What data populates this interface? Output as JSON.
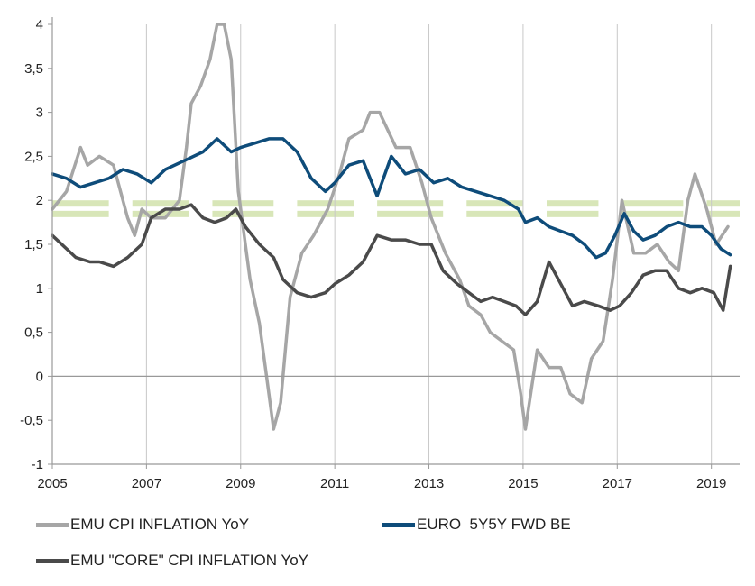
{
  "chart_data": {
    "type": "line",
    "title": "",
    "xlabel": "",
    "ylabel": "",
    "xlim": [
      2005,
      2019.6
    ],
    "ylim": [
      -1,
      4
    ],
    "y_ticks": [
      -1,
      -0.5,
      0,
      0.5,
      1,
      1.5,
      2,
      2.5,
      3,
      3.5,
      4
    ],
    "y_tick_labels": [
      "-1",
      "-0,5",
      "0",
      "0,5",
      "1",
      "1,5",
      "2",
      "2,5",
      "3",
      "3,5",
      "4"
    ],
    "x_ticks": [
      2005,
      2007,
      2009,
      2011,
      2013,
      2015,
      2017,
      2019
    ],
    "x_tick_labels": [
      "2005",
      "2007",
      "2009",
      "2011",
      "2013",
      "2015",
      "2017",
      "2019"
    ],
    "target_band": {
      "low": 1.85,
      "high": 2.0,
      "color": "#d8e6b8",
      "segment_years": [
        [
          2005.0,
          2006.2
        ],
        [
          2006.7,
          2007.9
        ],
        [
          2008.4,
          2009.7
        ],
        [
          2010.2,
          2011.4
        ],
        [
          2011.9,
          2013.3
        ],
        [
          2013.8,
          2015.0
        ],
        [
          2015.5,
          2016.6
        ],
        [
          2017.1,
          2018.4
        ],
        [
          2018.9,
          2019.6
        ]
      ]
    },
    "series": [
      {
        "name": "EMU CPI INFLATION YoY",
        "color": "#a6a6a6",
        "x": [
          2005.0,
          2005.3,
          2005.6,
          2005.75,
          2006.0,
          2006.3,
          2006.6,
          2006.75,
          2006.9,
          2007.1,
          2007.4,
          2007.7,
          2007.85,
          2007.95,
          2008.15,
          2008.35,
          2008.5,
          2008.65,
          2008.8,
          2008.95,
          2009.2,
          2009.4,
          2009.55,
          2009.7,
          2009.85,
          2010.05,
          2010.3,
          2010.55,
          2010.85,
          2011.1,
          2011.3,
          2011.6,
          2011.75,
          2011.95,
          2012.3,
          2012.6,
          2012.85,
          2013.05,
          2013.35,
          2013.65,
          2013.85,
          2014.1,
          2014.3,
          2014.55,
          2014.8,
          2014.95,
          2015.05,
          2015.3,
          2015.55,
          2015.8,
          2016.0,
          2016.25,
          2016.45,
          2016.7,
          2016.9,
          2017.1,
          2017.35,
          2017.6,
          2017.85,
          2018.1,
          2018.3,
          2018.5,
          2018.65,
          2018.9,
          2019.1,
          2019.35
        ],
        "values": [
          1.9,
          2.1,
          2.6,
          2.4,
          2.5,
          2.4,
          1.8,
          1.6,
          1.9,
          1.8,
          1.8,
          2.0,
          2.6,
          3.1,
          3.3,
          3.6,
          4.0,
          4.0,
          3.6,
          2.1,
          1.1,
          0.6,
          0.0,
          -0.6,
          -0.3,
          0.9,
          1.4,
          1.6,
          1.9,
          2.3,
          2.7,
          2.8,
          3.0,
          3.0,
          2.6,
          2.6,
          2.2,
          1.8,
          1.4,
          1.1,
          0.8,
          0.7,
          0.5,
          0.4,
          0.3,
          -0.2,
          -0.6,
          0.3,
          0.1,
          0.1,
          -0.2,
          -0.3,
          0.2,
          0.4,
          1.1,
          2.0,
          1.4,
          1.4,
          1.5,
          1.3,
          1.2,
          2.0,
          2.3,
          1.9,
          1.5,
          1.7
        ]
      },
      {
        "name": "EURO  5Y5Y FWD BE",
        "color": "#0e4c7a",
        "x": [
          2005.0,
          2005.3,
          2005.6,
          2005.9,
          2006.2,
          2006.5,
          2006.8,
          2007.1,
          2007.4,
          2007.8,
          2008.2,
          2008.5,
          2008.8,
          2009.0,
          2009.3,
          2009.6,
          2009.9,
          2010.2,
          2010.5,
          2010.8,
          2011.0,
          2011.3,
          2011.6,
          2011.9,
          2012.2,
          2012.5,
          2012.8,
          2013.1,
          2013.4,
          2013.7,
          2014.0,
          2014.3,
          2014.6,
          2014.9,
          2015.05,
          2015.3,
          2015.55,
          2015.8,
          2016.05,
          2016.3,
          2016.55,
          2016.75,
          2016.95,
          2017.15,
          2017.35,
          2017.55,
          2017.8,
          2018.05,
          2018.3,
          2018.55,
          2018.8,
          2019.0,
          2019.2,
          2019.4
        ],
        "values": [
          2.3,
          2.25,
          2.15,
          2.2,
          2.25,
          2.35,
          2.3,
          2.2,
          2.35,
          2.45,
          2.55,
          2.7,
          2.55,
          2.6,
          2.65,
          2.7,
          2.7,
          2.55,
          2.25,
          2.1,
          2.2,
          2.4,
          2.45,
          2.05,
          2.5,
          2.3,
          2.35,
          2.2,
          2.25,
          2.15,
          2.1,
          2.05,
          2.0,
          1.9,
          1.75,
          1.8,
          1.7,
          1.65,
          1.6,
          1.5,
          1.35,
          1.4,
          1.6,
          1.85,
          1.65,
          1.55,
          1.6,
          1.7,
          1.75,
          1.7,
          1.7,
          1.6,
          1.45,
          1.38
        ]
      },
      {
        "name": "EMU \"CORE\" CPI INFLATION YoY",
        "color": "#4a4a4a",
        "x": [
          2005.0,
          2005.3,
          2005.5,
          2005.8,
          2006.0,
          2006.3,
          2006.6,
          2006.9,
          2007.1,
          2007.4,
          2007.7,
          2007.95,
          2008.2,
          2008.45,
          2008.7,
          2008.9,
          2009.1,
          2009.4,
          2009.7,
          2009.9,
          2010.2,
          2010.5,
          2010.8,
          2011.0,
          2011.3,
          2011.6,
          2011.9,
          2012.2,
          2012.5,
          2012.8,
          2013.05,
          2013.3,
          2013.6,
          2013.85,
          2014.1,
          2014.35,
          2014.6,
          2014.85,
          2015.05,
          2015.3,
          2015.55,
          2015.8,
          2016.05,
          2016.3,
          2016.6,
          2016.85,
          2017.05,
          2017.3,
          2017.55,
          2017.8,
          2018.05,
          2018.3,
          2018.55,
          2018.8,
          2019.05,
          2019.25,
          2019.4
        ],
        "values": [
          1.6,
          1.45,
          1.35,
          1.3,
          1.3,
          1.25,
          1.35,
          1.5,
          1.8,
          1.9,
          1.9,
          1.95,
          1.8,
          1.75,
          1.8,
          1.9,
          1.7,
          1.5,
          1.35,
          1.1,
          0.95,
          0.9,
          0.95,
          1.05,
          1.15,
          1.3,
          1.6,
          1.55,
          1.55,
          1.5,
          1.5,
          1.2,
          1.05,
          0.95,
          0.85,
          0.9,
          0.85,
          0.8,
          0.7,
          0.85,
          1.3,
          1.05,
          0.8,
          0.85,
          0.8,
          0.75,
          0.8,
          0.95,
          1.15,
          1.2,
          1.2,
          1.0,
          0.95,
          1.0,
          0.95,
          0.75,
          1.25
        ]
      }
    ]
  }
}
